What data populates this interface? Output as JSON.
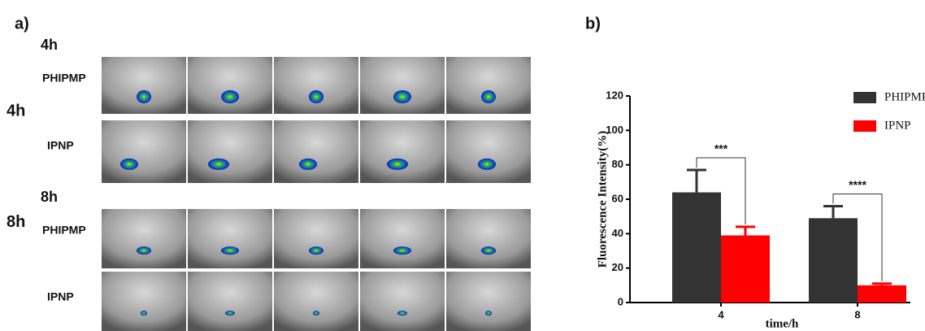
{
  "panels": {
    "a": "a)",
    "b": "b)"
  },
  "images": {
    "rows": [
      {
        "time": "4h",
        "group": "PHIPMP",
        "side": "4h"
      },
      {
        "group": "IPNP"
      },
      {
        "time": "8h",
        "group": "PHIPMP",
        "side": "8h"
      },
      {
        "group": "IPNP"
      }
    ]
  },
  "chart_data": {
    "type": "bar",
    "categories": [
      "4",
      "8"
    ],
    "series": [
      {
        "name": "PHIPMP",
        "color": "#333333",
        "values": [
          64,
          49
        ],
        "errors": [
          13,
          7
        ]
      },
      {
        "name": "IPNP",
        "color": "#ff0000",
        "values": [
          39,
          10
        ],
        "errors": [
          5,
          1
        ]
      }
    ],
    "ylim": [
      0,
      120
    ],
    "yticks": [
      0,
      20,
      40,
      60,
      80,
      100,
      120
    ],
    "y_label": "Fluorescence Intensity(%)",
    "x_label": "time/h",
    "annotations": [
      "***",
      "****"
    ]
  }
}
